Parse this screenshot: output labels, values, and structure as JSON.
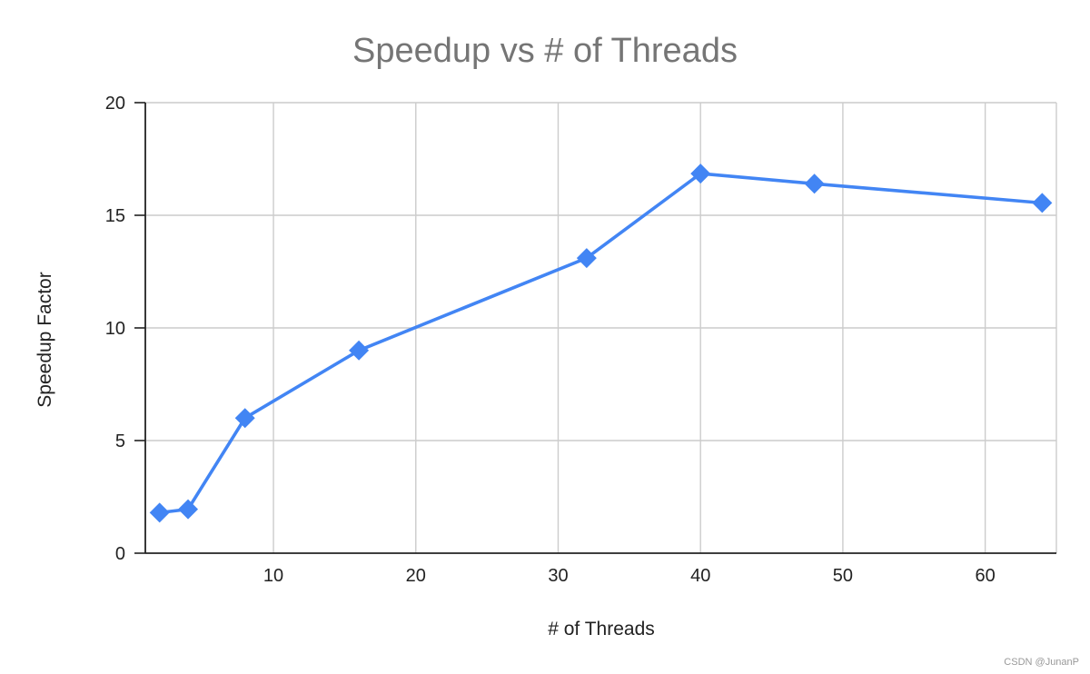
{
  "chart_data": {
    "type": "line",
    "title": "Speedup vs # of Threads",
    "xlabel": "# of Threads",
    "ylabel": "Speedup Factor",
    "x": [
      2,
      4,
      8,
      16,
      32,
      40,
      48,
      64
    ],
    "series": [
      {
        "values": [
          1.8,
          1.95,
          6.0,
          9.0,
          13.1,
          16.85,
          16.4,
          15.55
        ],
        "color": "#4285f4",
        "marker": "diamond"
      }
    ],
    "xlim": [
      1,
      65
    ],
    "ylim": [
      0,
      20
    ],
    "x_ticks": [
      10,
      20,
      30,
      40,
      50,
      60
    ],
    "y_ticks": [
      0,
      5,
      10,
      15,
      20
    ],
    "grid": true,
    "legend": "none",
    "gridline_color": "#cccccc"
  },
  "watermark": "CSDN @JunanP"
}
